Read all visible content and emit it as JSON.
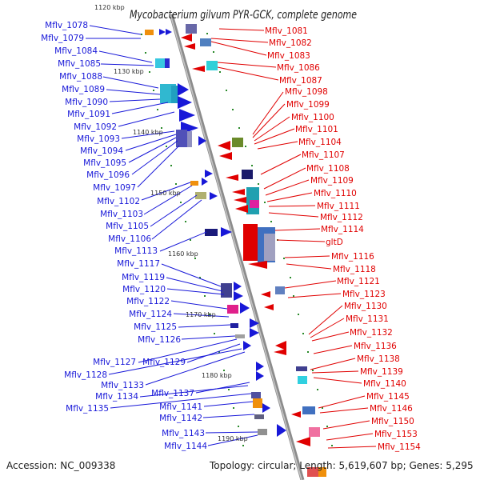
{
  "title": "Mycobacterium gilvum PYR-GCK, complete genome",
  "top_clip_label": "1120 kbp",
  "footer": {
    "accession": "Accession: NC_009338",
    "topology": "Topology: circular; Length: 5,619,607 bp; Genes: 5,295"
  },
  "kbp_labels": [
    "1130 kbp",
    "1140 kbp",
    "1150 kbp",
    "1160 kbp",
    "1170 kbp",
    "1180 kbp",
    "1190 kbp"
  ],
  "left_genes": [
    "Mflv_1078",
    "Mflv_1079",
    "Mflv_1084",
    "Mflv_1085",
    "Mflv_1088",
    "Mflv_1089",
    "Mflv_1090",
    "Mflv_1091",
    "Mflv_1092",
    "Mflv_1093",
    "Mflv_1094",
    "Mflv_1095",
    "Mflv_1096",
    "Mflv_1097",
    "Mflv_1102",
    "Mflv_1103",
    "Mflv_1105",
    "Mflv_1106",
    "Mflv_1113",
    "Mflv_1117",
    "Mflv_1119",
    "Mflv_1120",
    "Mflv_1122",
    "Mflv_1124",
    "Mflv_1125",
    "Mflv_1126",
    "Mflv_1127",
    "Mflv_1129",
    "Mflv_1128",
    "Mflv_1133",
    "Mflv_1137",
    "Mflv_1134",
    "Mflv_1135",
    "Mflv_1141",
    "Mflv_1142",
    "Mflv_1143",
    "Mflv_1144"
  ],
  "right_genes": [
    "Mflv_1081",
    "Mflv_1082",
    "Mflv_1083",
    "Mflv_1086",
    "Mflv_1087",
    "Mflv_1098",
    "Mflv_1099",
    "Mflv_1100",
    "Mflv_1101",
    "Mflv_1104",
    "Mflv_1107",
    "Mflv_1108",
    "Mflv_1109",
    "Mflv_1110",
    "Mflv_1111",
    "Mflv_1112",
    "Mflv_1114",
    "gltD",
    "Mflv_1116",
    "Mflv_1118",
    "Mflv_1121",
    "Mflv_1123",
    "Mflv_1130",
    "Mflv_1131",
    "Mflv_1132",
    "Mflv_1136",
    "Mflv_1138",
    "Mflv_1139",
    "Mflv_1140",
    "Mflv_1145",
    "Mflv_1146",
    "Mflv_1150",
    "Mflv_1153",
    "Mflv_1154"
  ],
  "colors": {
    "forward_strand": "#1818d8",
    "reverse_strand": "#e00000",
    "backbone": "#909090",
    "tick": "#2a8a2a"
  }
}
